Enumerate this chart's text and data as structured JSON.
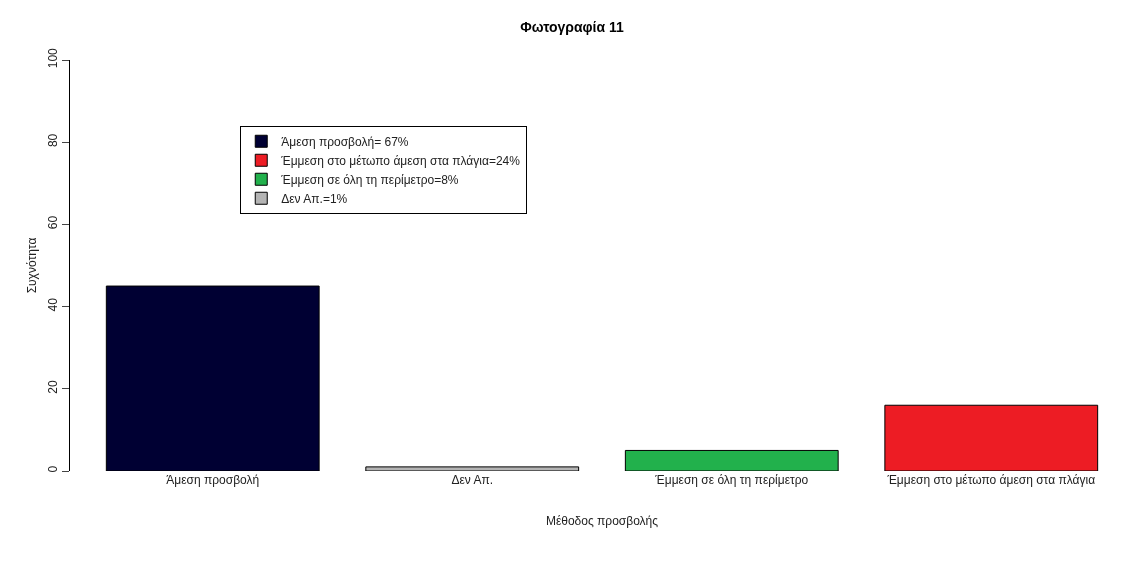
{
  "chart_data": {
    "type": "bar",
    "title": "Φωτογραφία 11",
    "xlabel": "Μέθοδος προσβολής",
    "ylabel": "Συχνότητα",
    "categories": [
      "Άμεση προσβολή",
      "Δεν Απ.",
      "Έμμεση σε όλη τη περίμετρο",
      "Έμμεση στο μέτωπο άμεση στα πλάγια"
    ],
    "series": [
      {
        "name": "Άμεση προσβολή= 67%",
        "color": "#000033",
        "values": [
          45,
          null,
          null,
          null
        ]
      },
      {
        "name": "Έμμεση στο μέτωπο άμεση στα πλάγια=24%",
        "color": "#ed1c24",
        "values": [
          null,
          null,
          null,
          16
        ]
      },
      {
        "name": "Έμμεση σε όλη τη περίμετρο=8%",
        "color": "#22b14c",
        "values": [
          null,
          null,
          5,
          null
        ]
      },
      {
        "name": "Δεν Απ.=1%",
        "color": "#b4b4b4",
        "values": [
          null,
          1,
          null,
          null
        ]
      }
    ],
    "ylim": [
      0,
      100
    ],
    "yticks": [
      0,
      20,
      40,
      60,
      80,
      100
    ],
    "grid": false,
    "legend": "top left"
  }
}
